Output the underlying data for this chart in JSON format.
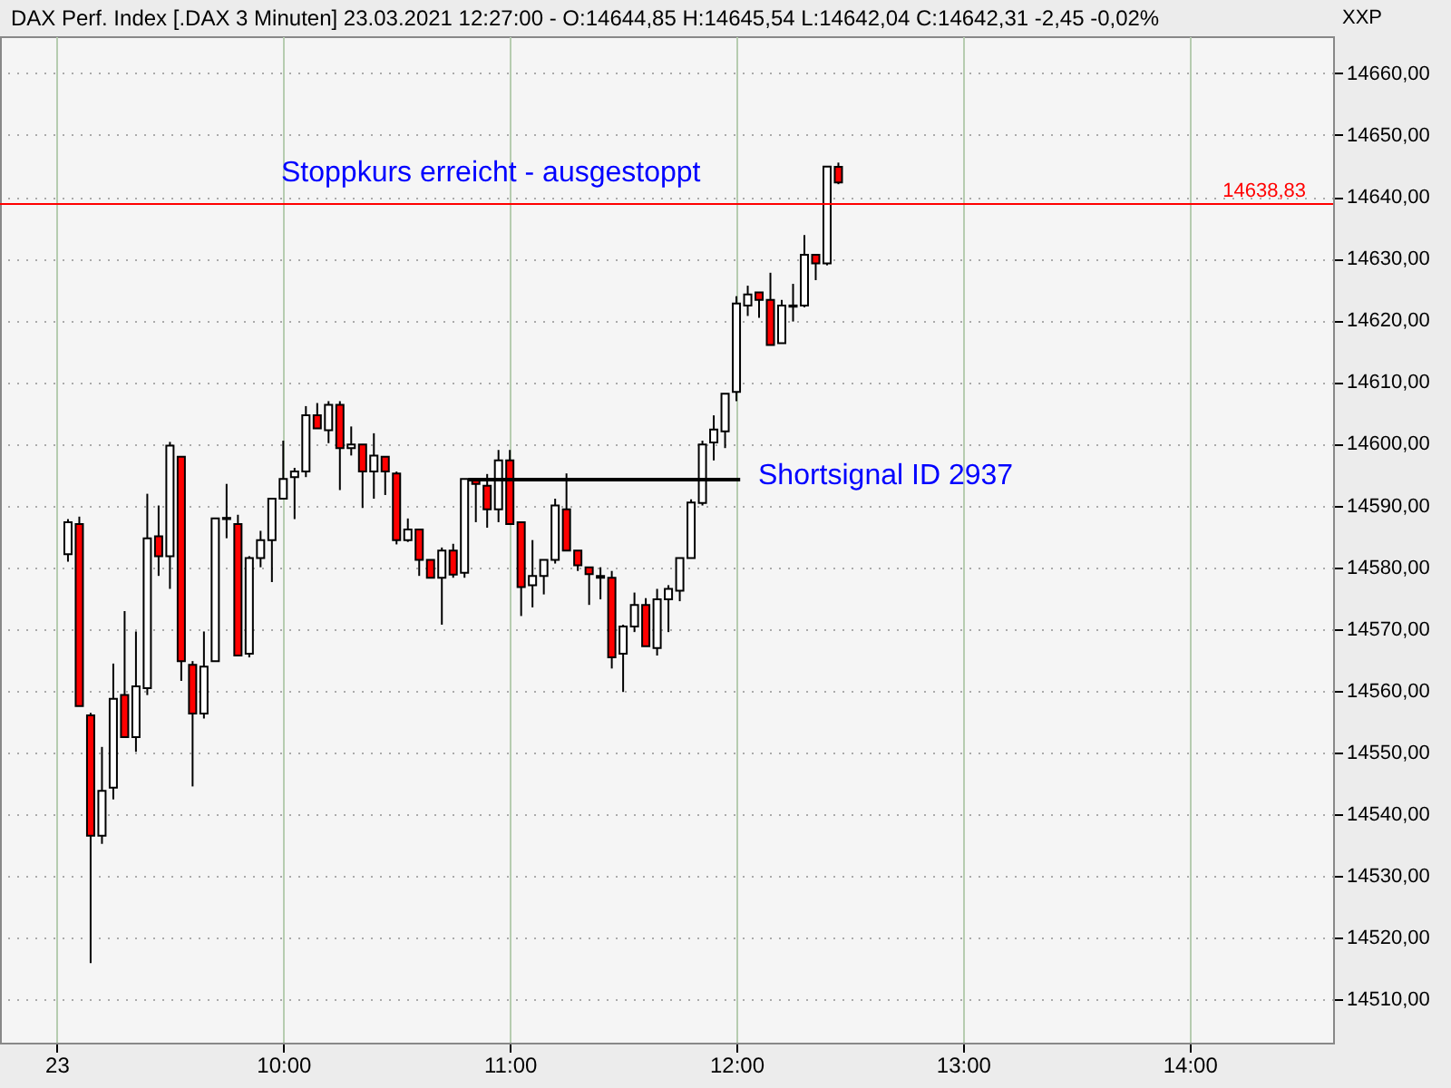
{
  "chart_data": {
    "type": "candlestick",
    "title": "DAX Perf. Index [.DAX  3 Minuten] 23.03.2021 12:27:00 - O:14644,85 H:14645,54 L:14642,04 C:14642,31 -2,45 -0,02%",
    "x": [
      "2021-03-23T09:03",
      "2021-03-23T09:06",
      "2021-03-23T09:09",
      "2021-03-23T09:12",
      "2021-03-23T09:15",
      "2021-03-23T09:18",
      "2021-03-23T09:21",
      "2021-03-23T09:24",
      "2021-03-23T09:27",
      "2021-03-23T09:30",
      "2021-03-23T09:33",
      "2021-03-23T09:36",
      "2021-03-23T09:39",
      "2021-03-23T09:42",
      "2021-03-23T09:45",
      "2021-03-23T09:48",
      "2021-03-23T09:51",
      "2021-03-23T09:54",
      "2021-03-23T09:57",
      "2021-03-23T10:00",
      "2021-03-23T10:03",
      "2021-03-23T10:06",
      "2021-03-23T10:09",
      "2021-03-23T10:12",
      "2021-03-23T10:15",
      "2021-03-23T10:18",
      "2021-03-23T10:21",
      "2021-03-23T10:24",
      "2021-03-23T10:27",
      "2021-03-23T10:30",
      "2021-03-23T10:33",
      "2021-03-23T10:36",
      "2021-03-23T10:39",
      "2021-03-23T10:42",
      "2021-03-23T10:45",
      "2021-03-23T10:48",
      "2021-03-23T10:51",
      "2021-03-23T10:54",
      "2021-03-23T10:57",
      "2021-03-23T11:00",
      "2021-03-23T11:03",
      "2021-03-23T11:06",
      "2021-03-23T11:09",
      "2021-03-23T11:12",
      "2021-03-23T11:15",
      "2021-03-23T11:18",
      "2021-03-23T11:21",
      "2021-03-23T11:24",
      "2021-03-23T11:27",
      "2021-03-23T11:30",
      "2021-03-23T11:33",
      "2021-03-23T11:36",
      "2021-03-23T11:39",
      "2021-03-23T11:42",
      "2021-03-23T11:45",
      "2021-03-23T11:48",
      "2021-03-23T11:51",
      "2021-03-23T11:54",
      "2021-03-23T11:57",
      "2021-03-23T12:00",
      "2021-03-23T12:03",
      "2021-03-23T12:06",
      "2021-03-23T12:09",
      "2021-03-23T12:12",
      "2021-03-23T12:15",
      "2021-03-23T12:18",
      "2021-03-23T12:21",
      "2021-03-23T12:24",
      "2021-03-23T12:27"
    ],
    "ohlc": [
      [
        14582.1,
        14587.8,
        14580.9,
        14587.3
      ],
      [
        14587.0,
        14588.2,
        14557.5,
        14557.5
      ],
      [
        14556.0,
        14556.4,
        14515.9,
        14536.5
      ],
      [
        14536.5,
        14550.9,
        14535.2,
        14543.8
      ],
      [
        14544.3,
        14564.4,
        14542.4,
        14558.7
      ],
      [
        14559.3,
        14572.9,
        14552.5,
        14552.5
      ],
      [
        14552.5,
        14569.6,
        14550.1,
        14560.7
      ],
      [
        14560.4,
        14591.9,
        14559.3,
        14584.7
      ],
      [
        14585.0,
        14590.0,
        14578.6,
        14581.8
      ],
      [
        14581.8,
        14600.3,
        14576.5,
        14599.7
      ],
      [
        14597.9,
        14598.0,
        14561.6,
        14564.8
      ],
      [
        14564.2,
        14564.8,
        14544.5,
        14556.3
      ],
      [
        14556.3,
        14569.6,
        14555.5,
        14563.9
      ],
      [
        14564.8,
        14587.9,
        14564.8,
        14587.9
      ],
      [
        14587.8,
        14593.5,
        14584.7,
        14588.0
      ],
      [
        14587.0,
        14588.5,
        14565.7,
        14565.7
      ],
      [
        14566.0,
        14581.8,
        14565.4,
        14581.5
      ],
      [
        14581.5,
        14585.9,
        14580.0,
        14584.4
      ],
      [
        14584.4,
        14591.1,
        14577.6,
        14591.1
      ],
      [
        14591.1,
        14600.5,
        14591.1,
        14594.3
      ],
      [
        14594.6,
        14596.1,
        14587.8,
        14595.5
      ],
      [
        14595.5,
        14606.1,
        14594.6,
        14604.6
      ],
      [
        14604.6,
        14606.6,
        14602.5,
        14602.5
      ],
      [
        14602.2,
        14606.9,
        14600.1,
        14606.3
      ],
      [
        14606.3,
        14606.9,
        14592.5,
        14599.3
      ],
      [
        14599.3,
        14602.8,
        14598.1,
        14599.9
      ],
      [
        14599.9,
        14599.9,
        14589.6,
        14595.5
      ],
      [
        14595.5,
        14601.7,
        14591.1,
        14598.1
      ],
      [
        14597.9,
        14597.9,
        14591.7,
        14595.5
      ],
      [
        14595.2,
        14595.5,
        14583.7,
        14584.4
      ],
      [
        14584.4,
        14587.9,
        14584.1,
        14586.1
      ],
      [
        14586.1,
        14586.1,
        14578.6,
        14581.2
      ],
      [
        14581.2,
        14581.2,
        14578.3,
        14578.3
      ],
      [
        14578.3,
        14583.2,
        14570.7,
        14582.7
      ],
      [
        14582.7,
        14583.8,
        14578.3,
        14578.8
      ],
      [
        14579.1,
        14594.3,
        14578.3,
        14594.3
      ],
      [
        14594.3,
        14594.3,
        14587.3,
        14593.5
      ],
      [
        14593.2,
        14595.1,
        14586.4,
        14589.4
      ],
      [
        14589.4,
        14599.0,
        14587.3,
        14597.3
      ],
      [
        14597.3,
        14599.0,
        14587.0,
        14587.0
      ],
      [
        14587.3,
        14587.3,
        14572.1,
        14576.8
      ],
      [
        14577.1,
        14584.4,
        14573.5,
        14578.6
      ],
      [
        14578.6,
        14581.2,
        14575.6,
        14581.2
      ],
      [
        14581.2,
        14591.1,
        14580.6,
        14590.0
      ],
      [
        14589.4,
        14595.2,
        14582.7,
        14582.7
      ],
      [
        14582.7,
        14582.7,
        14579.4,
        14580.3
      ],
      [
        14580.0,
        14580.0,
        14573.9,
        14578.9
      ],
      [
        14578.6,
        14580.0,
        14574.8,
        14578.3
      ],
      [
        14578.3,
        14579.4,
        14563.6,
        14565.4
      ],
      [
        14566.0,
        14570.7,
        14559.8,
        14570.4
      ],
      [
        14570.4,
        14575.9,
        14569.5,
        14573.9
      ],
      [
        14573.9,
        14575.0,
        14567.2,
        14567.2
      ],
      [
        14566.9,
        14576.5,
        14565.7,
        14574.8
      ],
      [
        14574.8,
        14577.1,
        14569.5,
        14576.5
      ],
      [
        14576.2,
        14581.5,
        14574.5,
        14581.5
      ],
      [
        14581.5,
        14591.0,
        14581.5,
        14590.5
      ],
      [
        14590.4,
        14600.5,
        14590.0,
        14599.9
      ],
      [
        14600.2,
        14604.6,
        14597.3,
        14602.3
      ],
      [
        14602.0,
        14608.1,
        14599.3,
        14608.1
      ],
      [
        14608.4,
        14623.9,
        14606.9,
        14622.7
      ],
      [
        14622.4,
        14625.6,
        14620.7,
        14624.2
      ],
      [
        14624.5,
        14624.5,
        14620.4,
        14623.3
      ],
      [
        14623.3,
        14627.7,
        14616.0,
        14616.0
      ],
      [
        14616.3,
        14623.3,
        14616.3,
        14622.4
      ],
      [
        14622.4,
        14625.9,
        14619.8,
        14622.2
      ],
      [
        14622.4,
        14633.8,
        14622.1,
        14630.6
      ],
      [
        14630.6,
        14630.6,
        14626.5,
        14629.2
      ],
      [
        14629.2,
        14644.9,
        14628.9,
        14644.9
      ],
      [
        14644.85,
        14645.54,
        14642.04,
        14642.31
      ]
    ],
    "colors": [
      "#ffffff",
      "#ff0000",
      "#ff0000",
      "#ffffff",
      "#ffffff",
      "#ff0000",
      "#ffffff",
      "#ffffff",
      "#ff0000",
      "#ffffff",
      "#ff0000",
      "#ff0000",
      "#ffffff",
      "#ffffff",
      "#ffffff",
      "#ff0000",
      "#ffffff",
      "#ffffff",
      "#ffffff",
      "#ffffff",
      "#ffffff",
      "#ffffff",
      "#ff0000",
      "#ffffff",
      "#ff0000",
      "#ffffff",
      "#ff0000",
      "#ffffff",
      "#ff0000",
      "#ff0000",
      "#ffffff",
      "#ff0000",
      "#ff0000",
      "#ffffff",
      "#ff0000",
      "#ffffff",
      "#ff0000",
      "#ff0000",
      "#ffffff",
      "#ff0000",
      "#ff0000",
      "#ffffff",
      "#ffffff",
      "#ffffff",
      "#ff0000",
      "#ff0000",
      "#ff0000",
      "#ff0000",
      "#ff0000",
      "#ffffff",
      "#ffffff",
      "#ff0000",
      "#ffffff",
      "#ffffff",
      "#ffffff",
      "#ffffff",
      "#ffffff",
      "#ffffff",
      "#ffffff",
      "#ffffff",
      "#ffffff",
      "#ff0000",
      "#ff0000",
      "#ffffff",
      "#ff0000",
      "#ffffff",
      "#ff0000",
      "#ffffff",
      "#ff0000"
    ],
    "series": [
      {
        "type": "line",
        "x": [
          "2021-03-23T10:49",
          "2021-03-23T12:01"
        ],
        "values": [
          14594.2,
          14594.2
        ],
        "color": "#000000"
      }
    ],
    "ref_lines": [
      {
        "axis": "y",
        "value": 14638.83,
        "label": "14638,83",
        "color": "#ff0000"
      }
    ],
    "annotations": [
      "Stoppkurs erreicht - ausgestoppt",
      "Shortsignal ID 2937",
      "XXP"
    ],
    "xlim": [
      "2021-03-23T08:45",
      "2021-03-23T14:38"
    ],
    "ylim": [
      14503,
      14666
    ],
    "xticks": [
      {
        "value": "2021-03-23T09:00",
        "label": "23"
      },
      {
        "value": "2021-03-23T10:00",
        "label": "10:00"
      },
      {
        "value": "2021-03-23T11:00",
        "label": "11:00"
      },
      {
        "value": "2021-03-23T12:00",
        "label": "12:00"
      },
      {
        "value": "2021-03-23T13:00",
        "label": "13:00"
      },
      {
        "value": "2021-03-23T14:00",
        "label": "14:00"
      }
    ],
    "yticks": [
      {
        "value": 14510,
        "label": "14510,00"
      },
      {
        "value": 14520,
        "label": "14520,00"
      },
      {
        "value": 14530,
        "label": "14530,00"
      },
      {
        "value": 14540,
        "label": "14540,00"
      },
      {
        "value": 14550,
        "label": "14550,00"
      },
      {
        "value": 14560,
        "label": "14560,00"
      },
      {
        "value": 14570,
        "label": "14570,00"
      },
      {
        "value": 14580,
        "label": "14580,00"
      },
      {
        "value": 14590,
        "label": "14590,00"
      },
      {
        "value": 14600,
        "label": "14600,00"
      },
      {
        "value": 14610,
        "label": "14610,00"
      },
      {
        "value": 14620,
        "label": "14620,00"
      },
      {
        "value": 14630,
        "label": "14630,00"
      },
      {
        "value": 14640,
        "label": "14640,00"
      },
      {
        "value": 14650,
        "label": "14650,00"
      },
      {
        "value": 14660,
        "label": "14660,00"
      }
    ],
    "grid": true
  }
}
